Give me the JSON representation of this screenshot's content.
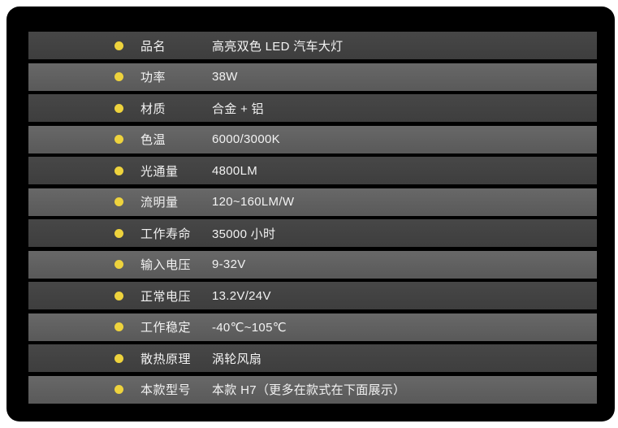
{
  "panel": {
    "background_color": "#000000",
    "page_background_color": "#ffffff"
  },
  "table": {
    "colors": {
      "row_dark": "#424242",
      "row_light": "#616161",
      "bullet": "#eed33d",
      "text": "#f2f2f2"
    },
    "rows": [
      {
        "label": "品名",
        "value": "高亮双色 LED 汽车大灯"
      },
      {
        "label": "功率",
        "value": "38W"
      },
      {
        "label": "材质",
        "value": "合金 + 铝"
      },
      {
        "label": "色温",
        "value": "6000/3000K"
      },
      {
        "label": "光通量",
        "value": "4800LM"
      },
      {
        "label": "流明量",
        "value": "120~160LM/W"
      },
      {
        "label": "工作寿命",
        "value": "35000 小时"
      },
      {
        "label": "输入电压",
        "value": "9-32V"
      },
      {
        "label": "正常电压",
        "value": "13.2V/24V"
      },
      {
        "label": "工作稳定",
        "value": "-40℃~105℃"
      },
      {
        "label": "散热原理",
        "value": "涡轮风扇"
      },
      {
        "label": "本款型号",
        "value": "本款 H7（更多在款式在下面展示）"
      }
    ]
  }
}
